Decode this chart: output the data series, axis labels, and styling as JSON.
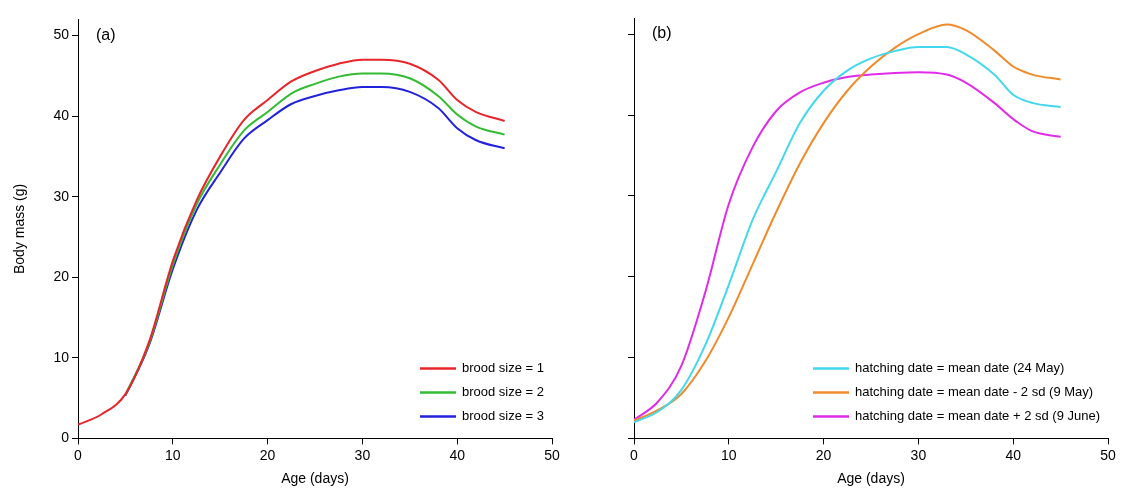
{
  "chart_data": [
    {
      "type": "line",
      "annotations": [
        "(a)"
      ],
      "xlabel": "Age (days)",
      "ylabel": "Body mass (g)",
      "xlim": [
        0,
        50
      ],
      "xticks": [
        0,
        10,
        20,
        30,
        40,
        50
      ],
      "ylim": [
        0,
        52
      ],
      "yticks": [
        0,
        10,
        20,
        30,
        40,
        50
      ],
      "grid": false,
      "legend": "bottom right",
      "marker": "none",
      "line_style": "solid",
      "x": [
        0,
        2.5,
        5,
        7.5,
        10,
        12.5,
        15,
        17.5,
        20,
        22.5,
        25,
        27.5,
        30,
        32,
        35,
        38,
        40,
        42,
        45
      ],
      "series": [
        {
          "name": "brood size = 1",
          "color": "#e8262a",
          "values": [
            1.7,
            3,
            5.5,
            12,
            22,
            29.5,
            35,
            39.5,
            42,
            44.3,
            45.6,
            46.5,
            47,
            47,
            46.5,
            44.5,
            42,
            40.5,
            39.4
          ]
        },
        {
          "name": "brood size = 2",
          "color": "#33bb33",
          "values": [
            null,
            null,
            5.4,
            11.8,
            21.5,
            29,
            34,
            38.2,
            40.5,
            42.8,
            44,
            44.9,
            45.3,
            45.3,
            44.7,
            42.5,
            40.2,
            38.7,
            37.7
          ]
        },
        {
          "name": "brood size = 3",
          "color": "#2222dd",
          "values": [
            null,
            null,
            5.3,
            11.6,
            21,
            28.3,
            33,
            37.2,
            39.5,
            41.5,
            42.5,
            43.2,
            43.6,
            43.6,
            43,
            41,
            38.5,
            37,
            36
          ]
        }
      ]
    },
    {
      "type": "line",
      "annotations": [
        "(b)"
      ],
      "xlabel": "Age (days)",
      "xlim": [
        0,
        50
      ],
      "xticks": [
        0,
        10,
        20,
        30,
        40,
        50
      ],
      "ylim": [
        0,
        52
      ],
      "yticks": [
        0,
        10,
        20,
        30,
        40,
        50
      ],
      "tick_labels": "x",
      "grid": false,
      "legend": "bottom right",
      "marker": "none",
      "line_style": "solid",
      "x": [
        0,
        2.5,
        5,
        7.5,
        10,
        12.5,
        15,
        17.5,
        20,
        22.5,
        25,
        27.5,
        30,
        33,
        35,
        38,
        40,
        42,
        45
      ],
      "series": [
        {
          "name": "hatching date = mean date (24 May)",
          "color": "#44d8ee",
          "values": [
            2,
            3.3,
            6,
            11.5,
            19,
            27,
            33,
            39,
            43,
            45.5,
            47,
            47.9,
            48.4,
            48.4,
            47.5,
            45,
            42.5,
            41.5,
            41
          ]
        },
        {
          "name": "hatching date = mean date - 2 sd (9 May)",
          "color": "#f08a2a",
          "values": [
            2.2,
            3.5,
            5.5,
            9.5,
            15,
            21.5,
            28,
            34,
            39,
            43,
            46,
            48.3,
            50,
            51.2,
            50.5,
            48,
            46,
            45,
            44.4
          ]
        },
        {
          "name": "hatching date = mean date + 2 sd (9 June)",
          "color": "#e02ce8",
          "values": [
            2.3,
            4.5,
            9,
            18,
            29,
            36,
            40.5,
            42.8,
            44,
            44.7,
            45,
            45.2,
            45.3,
            45,
            44,
            41.5,
            39.5,
            38,
            37.3
          ]
        }
      ]
    }
  ]
}
